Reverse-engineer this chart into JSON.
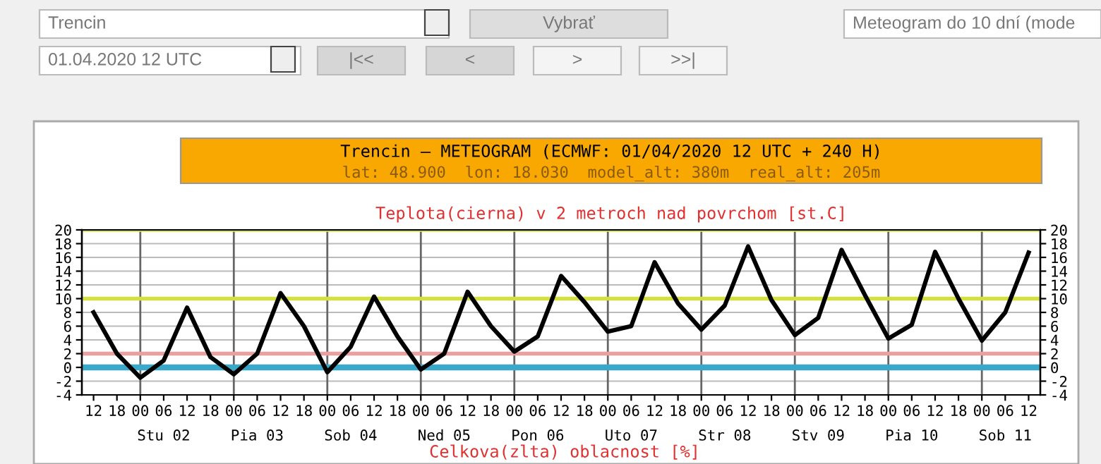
{
  "chart_data": {
    "type": "line",
    "title": "Trencin – METEOGRAM (ECMWF: 01/04/2020 12 UTC + 240 H)",
    "subtitle": "lat: 48.900  lon: 18.030  model_alt: 380m  real_alt: 205m",
    "annotations": [
      "Trencin",
      "Vybrať",
      "Meteogram do 10 dní (mode",
      "01.04.2020 12 UTC",
      "|<<",
      "<",
      ">",
      ">>|",
      "Teplota(cierna) v 2 metroch nad povrchom [st.C]",
      "Celkova(zlta) oblacnost [%]"
    ],
    "x": [
      "2020-04-01T12:00",
      "2020-04-01T18:00",
      "2020-04-02T00:00",
      "2020-04-02T06:00",
      "2020-04-02T12:00",
      "2020-04-02T18:00",
      "2020-04-03T00:00",
      "2020-04-03T06:00",
      "2020-04-03T12:00",
      "2020-04-03T18:00",
      "2020-04-04T00:00",
      "2020-04-04T06:00",
      "2020-04-04T12:00",
      "2020-04-04T18:00",
      "2020-04-05T00:00",
      "2020-04-05T06:00",
      "2020-04-05T12:00",
      "2020-04-05T18:00",
      "2020-04-06T00:00",
      "2020-04-06T06:00",
      "2020-04-06T12:00",
      "2020-04-06T18:00",
      "2020-04-07T00:00",
      "2020-04-07T06:00",
      "2020-04-07T12:00",
      "2020-04-07T18:00",
      "2020-04-08T00:00",
      "2020-04-08T06:00",
      "2020-04-08T12:00",
      "2020-04-08T18:00",
      "2020-04-09T00:00",
      "2020-04-09T06:00",
      "2020-04-09T12:00",
      "2020-04-09T18:00",
      "2020-04-10T00:00",
      "2020-04-10T06:00",
      "2020-04-10T12:00",
      "2020-04-10T18:00",
      "2020-04-11T00:00",
      "2020-04-11T06:00",
      "2020-04-11T12:00"
    ],
    "series": [
      {
        "color": "#000000",
        "values": [
          8,
          2,
          -1.5,
          1,
          8.7,
          1.5,
          -1,
          2,
          10.8,
          6,
          -0.7,
          3,
          10.3,
          4.5,
          -0.3,
          2,
          11,
          6,
          2.3,
          4.5,
          13.3,
          9.5,
          5.2,
          6,
          15.3,
          9.3,
          5.5,
          9,
          17.6,
          9.8,
          4.7,
          7.2,
          17.1,
          10.5,
          4.2,
          6.2,
          16.8,
          10,
          3.9,
          8,
          16.7
        ]
      }
    ],
    "xlim": [
      "2020-04-01T09:00",
      "2020-04-11T15:00"
    ],
    "xticks": [
      {
        "value": "2020-04-01T12:00",
        "label": "12"
      },
      {
        "value": "2020-04-01T18:00",
        "label": "18"
      },
      {
        "value": "2020-04-02T00:00",
        "label": "00"
      },
      {
        "value": "2020-04-02T06:00",
        "label": "06"
      },
      {
        "value": "2020-04-02T12:00",
        "label": "12"
      },
      {
        "value": "2020-04-02T18:00",
        "label": "18"
      },
      {
        "value": "2020-04-03T00:00",
        "label": "00"
      },
      {
        "value": "2020-04-03T06:00",
        "label": "06"
      },
      {
        "value": "2020-04-03T12:00",
        "label": "12"
      },
      {
        "value": "2020-04-03T18:00",
        "label": "18"
      },
      {
        "value": "2020-04-04T00:00",
        "label": "00"
      },
      {
        "value": "2020-04-04T06:00",
        "label": "06"
      },
      {
        "value": "2020-04-04T12:00",
        "label": "12"
      },
      {
        "value": "2020-04-04T18:00",
        "label": "18"
      },
      {
        "value": "2020-04-05T00:00",
        "label": "00"
      },
      {
        "value": "2020-04-05T06:00",
        "label": "06"
      },
      {
        "value": "2020-04-05T12:00",
        "label": "12"
      },
      {
        "value": "2020-04-05T18:00",
        "label": "18"
      },
      {
        "value": "2020-04-06T00:00",
        "label": "00"
      },
      {
        "value": "2020-04-06T06:00",
        "label": "06"
      },
      {
        "value": "2020-04-06T12:00",
        "label": "12"
      },
      {
        "value": "2020-04-06T18:00",
        "label": "18"
      },
      {
        "value": "2020-04-07T00:00",
        "label": "00"
      },
      {
        "value": "2020-04-07T06:00",
        "label": "06"
      },
      {
        "value": "2020-04-07T12:00",
        "label": "12"
      },
      {
        "value": "2020-04-07T18:00",
        "label": "18"
      },
      {
        "value": "2020-04-08T00:00",
        "label": "00"
      },
      {
        "value": "2020-04-08T06:00",
        "label": "06"
      },
      {
        "value": "2020-04-08T12:00",
        "label": "12"
      },
      {
        "value": "2020-04-08T18:00",
        "label": "18"
      },
      {
        "value": "2020-04-09T00:00",
        "label": "00"
      },
      {
        "value": "2020-04-09T06:00",
        "label": "06"
      },
      {
        "value": "2020-04-09T12:00",
        "label": "12"
      },
      {
        "value": "2020-04-09T18:00",
        "label": "18"
      },
      {
        "value": "2020-04-10T00:00",
        "label": "00"
      },
      {
        "value": "2020-04-10T06:00",
        "label": "06"
      },
      {
        "value": "2020-04-10T12:00",
        "label": "12"
      },
      {
        "value": "2020-04-10T18:00",
        "label": "18"
      },
      {
        "value": "2020-04-11T00:00",
        "label": "00"
      },
      {
        "value": "2020-04-11T06:00",
        "label": "06"
      },
      {
        "value": "2020-04-11T12:00",
        "label": "12"
      }
    ],
    "x2lim": [
      "2020-04-01T09:00",
      "2020-04-11T15:00"
    ],
    "x2ticks": [
      {
        "value": "2020-04-02T06:00",
        "label": "Stu 02"
      },
      {
        "value": "2020-04-03T06:00",
        "label": "Pia 03"
      },
      {
        "value": "2020-04-04T06:00",
        "label": "Sob 04"
      },
      {
        "value": "2020-04-05T06:00",
        "label": "Ned 05"
      },
      {
        "value": "2020-04-06T06:00",
        "label": "Pon 06"
      },
      {
        "value": "2020-04-07T06:00",
        "label": "Uto 07"
      },
      {
        "value": "2020-04-08T06:00",
        "label": "Str 08"
      },
      {
        "value": "2020-04-09T06:00",
        "label": "Stv 09"
      },
      {
        "value": "2020-04-10T06:00",
        "label": "Pia 10"
      },
      {
        "value": "2020-04-11T06:00",
        "label": "Sob 11"
      }
    ],
    "ylim": [
      -4,
      20
    ],
    "yticks": [
      -4,
      -2,
      0,
      2,
      4,
      6,
      8,
      10,
      12,
      14,
      16,
      18,
      20
    ],
    "y2lim": [
      -4,
      20
    ],
    "y2ticks": [
      -4,
      -2,
      0,
      2,
      4,
      6,
      8,
      10,
      12,
      14,
      16,
      18,
      20
    ],
    "grid": "y",
    "line_style": "solid",
    "marker": "none",
    "ref_lines": [
      {
        "axis": "x",
        "value": "2020-04-02T00:00",
        "color": "#666666"
      },
      {
        "axis": "x",
        "value": "2020-04-03T00:00",
        "color": "#666666"
      },
      {
        "axis": "x",
        "value": "2020-04-04T00:00",
        "color": "#666666"
      },
      {
        "axis": "x",
        "value": "2020-04-05T00:00",
        "color": "#666666"
      },
      {
        "axis": "x",
        "value": "2020-04-06T00:00",
        "color": "#666666"
      },
      {
        "axis": "x",
        "value": "2020-04-07T00:00",
        "color": "#666666"
      },
      {
        "axis": "x",
        "value": "2020-04-08T00:00",
        "color": "#666666"
      },
      {
        "axis": "x",
        "value": "2020-04-09T00:00",
        "color": "#666666"
      },
      {
        "axis": "x",
        "value": "2020-04-10T00:00",
        "color": "#666666"
      },
      {
        "axis": "x",
        "value": "2020-04-11T00:00",
        "color": "#666666"
      },
      {
        "axis": "y",
        "value": 20,
        "color": "#d4e040"
      },
      {
        "axis": "y",
        "value": 10,
        "color": "#d4e040"
      },
      {
        "axis": "y",
        "value": 2,
        "color": "#e8a0a0"
      },
      {
        "axis": "y",
        "value": 0,
        "color": "#3aa8c8"
      }
    ]
  }
}
